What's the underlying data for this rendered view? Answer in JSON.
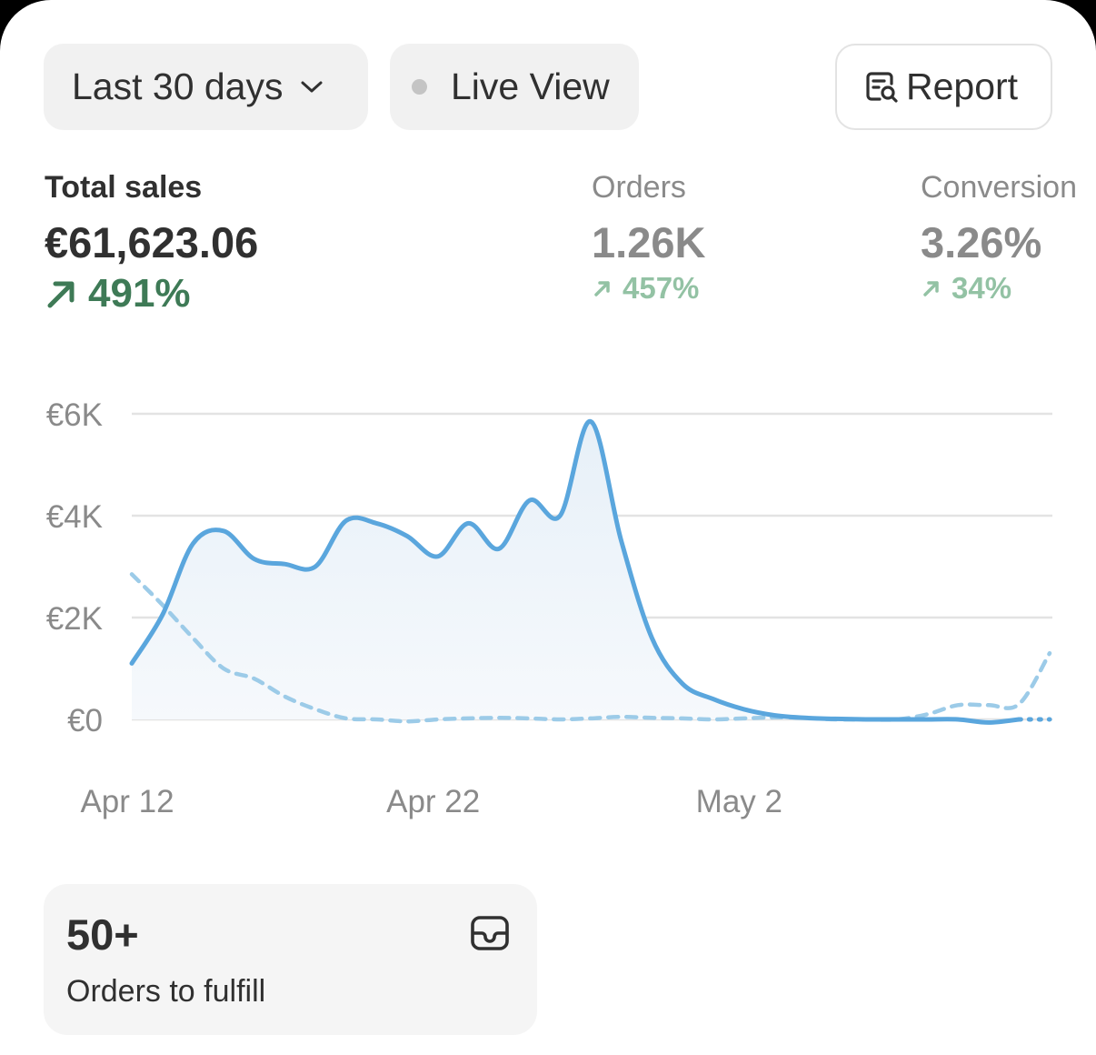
{
  "toolbar": {
    "date_range_label": "Last 30 days",
    "live_view_label": "Live View",
    "report_label": "Report"
  },
  "metrics": {
    "total_sales": {
      "label": "Total sales",
      "value": "€61,623.06",
      "change": "491%"
    },
    "orders": {
      "label": "Orders",
      "value": "1.26K",
      "change": "457%"
    },
    "conversion": {
      "label": "Conversion",
      "value": "3.26%",
      "change": "34%"
    }
  },
  "chart_data": {
    "type": "line",
    "xlabel": "",
    "ylabel": "",
    "x_tick_labels": [
      "Apr 12",
      "Apr 22",
      "May 2"
    ],
    "y_tick_labels": [
      "€0",
      "€2K",
      "€4K",
      "€6K"
    ],
    "ylim": [
      0,
      6000
    ],
    "grid": true,
    "series": [
      {
        "style": "solid",
        "color": "#5aa6dd",
        "values": [
          1100,
          2050,
          3450,
          3700,
          3150,
          3050,
          3000,
          3900,
          3850,
          3600,
          3200,
          3850,
          3350,
          4300,
          4000,
          5850,
          3500,
          1600,
          700,
          400,
          200,
          80,
          30,
          10,
          0,
          0,
          0,
          0,
          -60,
          0,
          0
        ]
      },
      {
        "style": "dashed",
        "color": "#9ccbe8",
        "values": [
          2850,
          2250,
          1600,
          1000,
          800,
          450,
          200,
          20,
          0,
          -40,
          0,
          20,
          30,
          20,
          0,
          20,
          50,
          30,
          20,
          0,
          20,
          40,
          30,
          0,
          0,
          0,
          100,
          280,
          280,
          300,
          1300
        ]
      }
    ],
    "colors": {
      "primary_line": "#5aa6dd",
      "comparison_line": "#9ccbe8",
      "grid": "#e3e3e3"
    }
  },
  "fulfillment": {
    "count": "50+",
    "label": "Orders to fulfill"
  },
  "colors": {
    "positive_strong": "#3e7a56",
    "positive_muted": "#93c2a4",
    "muted_text": "#8a8a8a"
  }
}
